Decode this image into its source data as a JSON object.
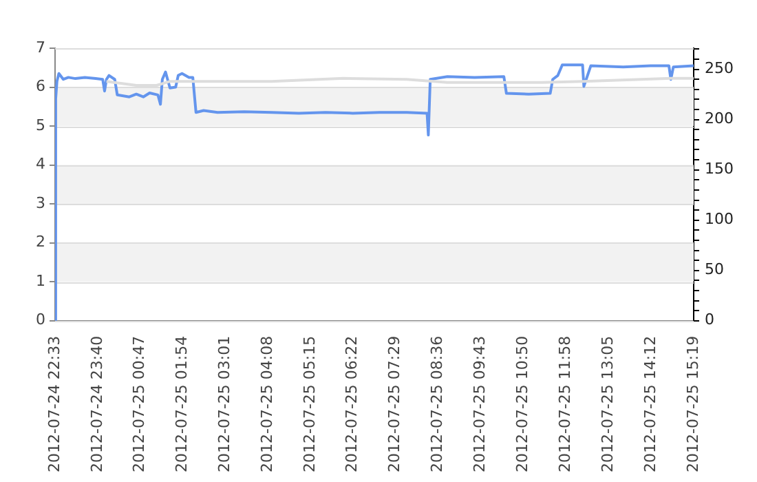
{
  "chart_data": {
    "type": "line",
    "x": [
      "2012-07-24T22:33",
      "2012-07-24T22:34",
      "2012-07-24T22:36",
      "2012-07-24T22:39",
      "2012-07-24T22:46",
      "2012-07-24T22:54",
      "2012-07-24T23:05",
      "2012-07-24T23:20",
      "2012-07-24T23:37",
      "2012-07-24T23:48",
      "2012-07-24T23:51",
      "2012-07-24T23:54",
      "2012-07-24T23:58",
      "2012-07-25T00:07",
      "2012-07-25T00:11",
      "2012-07-25T00:30",
      "2012-07-25T00:41",
      "2012-07-25T00:52",
      "2012-07-25T01:02",
      "2012-07-25T01:15",
      "2012-07-25T01:19",
      "2012-07-25T01:22",
      "2012-07-25T01:27",
      "2012-07-25T01:34",
      "2012-07-25T01:43",
      "2012-07-25T01:47",
      "2012-07-25T01:53",
      "2012-07-25T02:04",
      "2012-07-25T02:10",
      "2012-07-25T02:15",
      "2012-07-25T02:27",
      "2012-07-25T02:49",
      "2012-07-25T03:31",
      "2012-07-25T04:14",
      "2012-07-25T04:57",
      "2012-07-25T05:39",
      "2012-07-25T06:22",
      "2012-07-25T07:04",
      "2012-07-25T07:47",
      "2012-07-25T08:19",
      "2012-07-25T08:21",
      "2012-07-25T08:24",
      "2012-07-25T08:51",
      "2012-07-25T09:34",
      "2012-07-25T10:20",
      "2012-07-25T10:24",
      "2012-07-25T10:59",
      "2012-07-25T11:33",
      "2012-07-25T11:37",
      "2012-07-25T11:45",
      "2012-07-25T11:52",
      "2012-07-25T12:24",
      "2012-07-25T12:26",
      "2012-07-25T12:37",
      "2012-07-25T13:28",
      "2012-07-25T14:11",
      "2012-07-25T14:40",
      "2012-07-25T14:43",
      "2012-07-25T14:47",
      "2012-07-25T15:19"
    ],
    "series": [
      {
        "color": "#6495ed",
        "values": [
          0,
          5.7,
          6.15,
          6.35,
          6.2,
          6.25,
          6.22,
          6.25,
          6.22,
          6.2,
          5.9,
          6.2,
          6.3,
          6.2,
          5.8,
          5.75,
          5.82,
          5.75,
          5.85,
          5.8,
          5.56,
          6.2,
          6.39,
          5.98,
          6.0,
          6.3,
          6.35,
          6.25,
          6.25,
          5.35,
          5.4,
          5.35,
          5.37,
          5.35,
          5.33,
          5.35,
          5.33,
          5.35,
          5.35,
          5.33,
          4.77,
          6.2,
          6.27,
          6.25,
          6.27,
          5.84,
          5.82,
          5.84,
          6.2,
          6.3,
          6.57,
          6.57,
          6.02,
          6.55,
          6.52,
          6.55,
          6.55,
          6.2,
          6.52,
          6.55
        ]
      },
      {
        "color": "#dddddd",
        "axis": "y2",
        "x": [
          "2012-07-24T23:54",
          "2012-07-25T00:41",
          "2012-07-25T01:13",
          "2012-07-25T01:34",
          "2012-07-25T04:14",
          "2012-07-25T06:07",
          "2012-07-25T07:47",
          "2012-07-25T08:51",
          "2012-07-25T11:20",
          "2012-07-25T12:24",
          "2012-07-25T14:43",
          "2012-07-25T15:19"
        ],
        "values": [
          238,
          234,
          234,
          238,
          238,
          241,
          240,
          237,
          237,
          238,
          241,
          241
        ]
      }
    ],
    "xlim": [
      "2012-07-24T22:33",
      "2012-07-25T15:19"
    ],
    "xticks": [
      {
        "value": "2012-07-24T22:33",
        "label": "2012-07-24 22:33"
      },
      {
        "value": "2012-07-24T23:40",
        "label": "2012-07-24 23:40"
      },
      {
        "value": "2012-07-25T00:47",
        "label": "2012-07-25 00:47"
      },
      {
        "value": "2012-07-25T01:54",
        "label": "2012-07-25 01:54"
      },
      {
        "value": "2012-07-25T03:01",
        "label": "2012-07-25 03:01"
      },
      {
        "value": "2012-07-25T04:08",
        "label": "2012-07-25 04:08"
      },
      {
        "value": "2012-07-25T05:15",
        "label": "2012-07-25 05:15"
      },
      {
        "value": "2012-07-25T06:22",
        "label": "2012-07-25 06:22"
      },
      {
        "value": "2012-07-25T07:29",
        "label": "2012-07-25 07:29"
      },
      {
        "value": "2012-07-25T08:36",
        "label": "2012-07-25 08:36"
      },
      {
        "value": "2012-07-25T09:43",
        "label": "2012-07-25 09:43"
      },
      {
        "value": "2012-07-25T10:50",
        "label": "2012-07-25 10:50"
      },
      {
        "value": "2012-07-25T11:58",
        "label": "2012-07-25 11:58"
      },
      {
        "value": "2012-07-25T13:05",
        "label": "2012-07-25 13:05"
      },
      {
        "value": "2012-07-25T14:12",
        "label": "2012-07-25 14:12"
      },
      {
        "value": "2012-07-25T15:19",
        "label": "2012-07-25 15:19"
      }
    ],
    "ylim": [
      0,
      7
    ],
    "yticks": [
      0,
      1,
      2,
      3,
      4,
      5,
      6,
      7
    ],
    "y2lim": [
      0,
      271
    ],
    "y2ticks": [
      0,
      {
        "value": 10,
        "label": null
      },
      {
        "value": 20,
        "label": null
      },
      {
        "value": 30,
        "label": null
      },
      {
        "value": 40,
        "label": null
      },
      50,
      {
        "value": 60,
        "label": null
      },
      {
        "value": 70,
        "label": null
      },
      {
        "value": 80,
        "label": null
      },
      {
        "value": 90,
        "label": null
      },
      100,
      {
        "value": 110,
        "label": null
      },
      {
        "value": 120,
        "label": null
      },
      {
        "value": 130,
        "label": null
      },
      {
        "value": 140,
        "label": null
      },
      150,
      {
        "value": 160,
        "label": null
      },
      {
        "value": 170,
        "label": null
      },
      {
        "value": 180,
        "label": null
      },
      {
        "value": 190,
        "label": null
      },
      200,
      {
        "value": 210,
        "label": null
      },
      {
        "value": 220,
        "label": null
      },
      {
        "value": 230,
        "label": null
      },
      {
        "value": 240,
        "label": null
      },
      250,
      {
        "value": 260,
        "label": null
      },
      {
        "value": 270,
        "label": null
      }
    ],
    "grid": "y",
    "legend": false,
    "marker": "none",
    "line_style": "solid"
  }
}
